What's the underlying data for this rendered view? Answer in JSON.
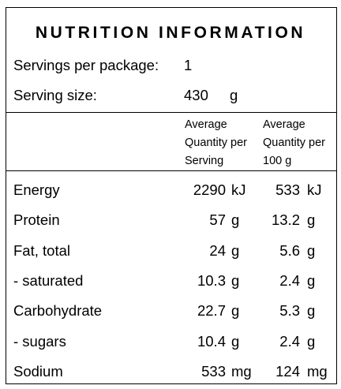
{
  "title": "NUTRITION INFORMATION",
  "servings": {
    "label": "Servings per package:",
    "value": "1"
  },
  "serving_size": {
    "label": "Serving size:",
    "value": "430",
    "unit": "g"
  },
  "columns": {
    "per_serving": [
      "Average",
      "Quantity per",
      "Serving"
    ],
    "per_100g": [
      "Average",
      "Quantity per",
      "100 g"
    ]
  },
  "rows": [
    {
      "name": "Energy",
      "serving_value": "2290",
      "serving_unit": "kJ",
      "per100_value": "533",
      "per100_unit": "kJ"
    },
    {
      "name": "Protein",
      "serving_value": "57",
      "serving_unit": "g",
      "per100_value": "13.2",
      "per100_unit": "g"
    },
    {
      "name": "Fat, total",
      "serving_value": "24",
      "serving_unit": "g",
      "per100_value": "5.6",
      "per100_unit": "g"
    },
    {
      "name": "- saturated",
      "serving_value": "10.3",
      "serving_unit": "g",
      "per100_value": "2.4",
      "per100_unit": "g"
    },
    {
      "name": "Carbohydrate",
      "serving_value": "22.7",
      "serving_unit": "g",
      "per100_value": "5.3",
      "per100_unit": "g"
    },
    {
      "name": "- sugars",
      "serving_value": "10.4",
      "serving_unit": "g",
      "per100_value": "2.4",
      "per100_unit": "g"
    },
    {
      "name": "Sodium",
      "serving_value": "533",
      "serving_unit": "mg",
      "per100_value": "124",
      "per100_unit": "mg"
    }
  ]
}
